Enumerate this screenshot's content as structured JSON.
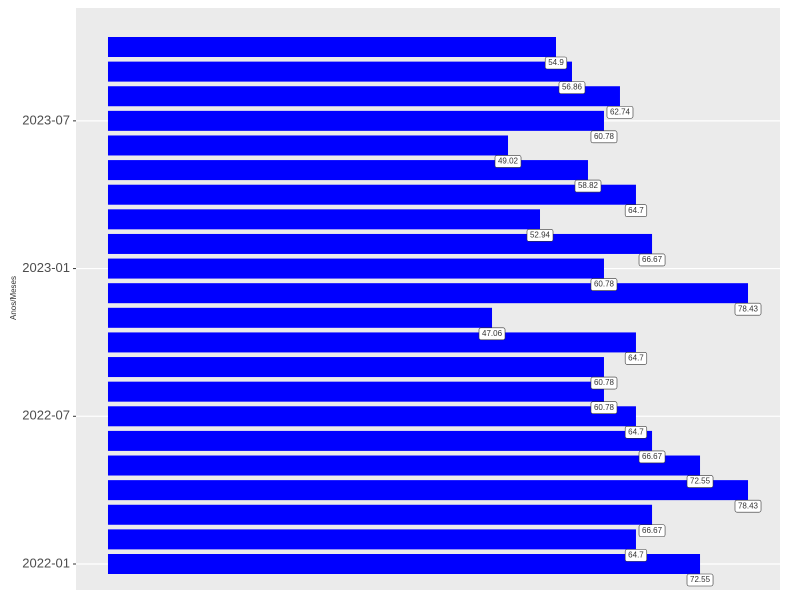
{
  "chart_data": {
    "type": "bar",
    "orientation": "horizontal",
    "y_label": "Anos/Meses",
    "categories": [
      "2022-01",
      null,
      null,
      null,
      null,
      null,
      "2022-07",
      null,
      null,
      null,
      null,
      null,
      "2023-01",
      null,
      null,
      null,
      null,
      null,
      "2023-07",
      null,
      null,
      null
    ],
    "values": [
      72.55,
      64.7,
      66.67,
      78.43,
      72.55,
      66.67,
      64.7,
      60.78,
      60.78,
      64.7,
      47.06,
      78.43,
      60.78,
      66.67,
      52.94,
      64.7,
      58.82,
      49.02,
      60.78,
      62.74,
      56.86,
      54.9
    ],
    "color": "#0000ff",
    "xlim": [
      -3.92,
      82.35
    ],
    "grid": true
  }
}
